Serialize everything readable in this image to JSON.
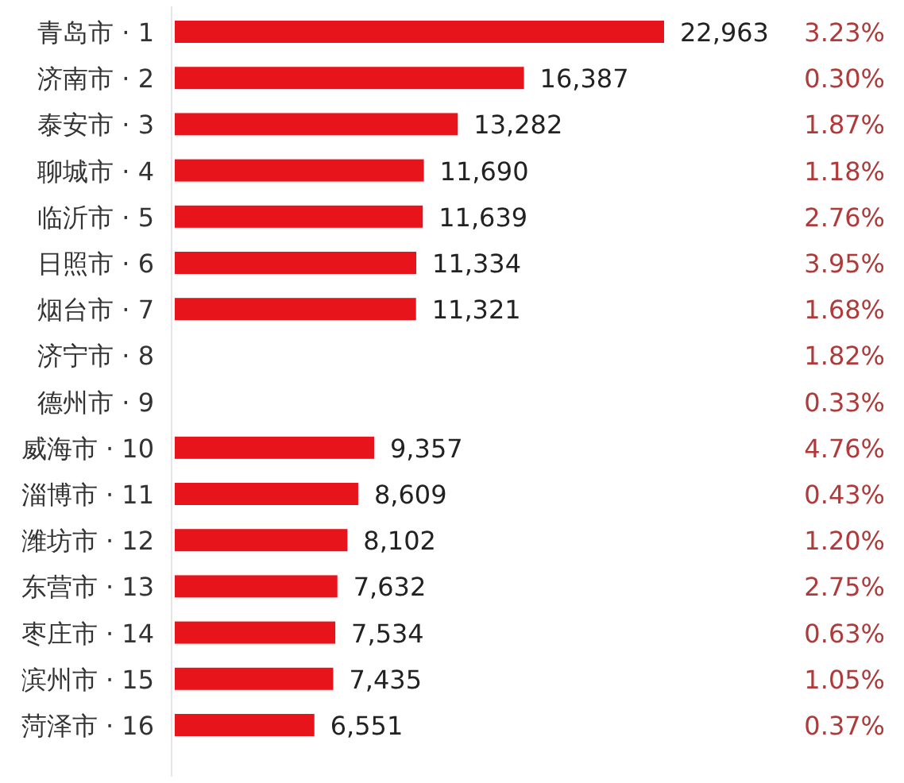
{
  "chart_data": {
    "type": "bar",
    "orientation": "horizontal",
    "value_labels": [
      "22,963",
      "16,387",
      "13,282",
      "11,690",
      "11,639",
      "11,334",
      "11,321",
      null,
      null,
      "9,357",
      "8,609",
      "8,102",
      "7,632",
      "7,534",
      "7,435",
      "6,551"
    ],
    "categories": [
      "青岛市 · 1",
      "济南市 · 2",
      "泰安市 · 3",
      "聊城市 · 4",
      "临沂市 · 5",
      "日照市 · 6",
      "烟台市 · 7",
      "济宁市 · 8",
      "德州市 · 9",
      "威海市 · 10",
      "淄博市 · 11",
      "潍坊市 · 12",
      "东营市 · 13",
      "枣庄市 · 14",
      "滨州市 · 15",
      "菏泽市 · 16"
    ],
    "values": [
      22963,
      16387,
      13282,
      11690,
      11639,
      11334,
      11321,
      null,
      null,
      9357,
      8609,
      8102,
      7632,
      7534,
      7435,
      6551
    ],
    "color": "#e8141c",
    "annotations": [
      "3.23%",
      "0.30%",
      "1.87%",
      "1.18%",
      "2.76%",
      "3.95%",
      "1.68%",
      "1.82%",
      "0.33%",
      "4.76%",
      "0.43%",
      "1.20%",
      "2.75%",
      "0.63%",
      "1.05%",
      "0.37%"
    ]
  }
}
